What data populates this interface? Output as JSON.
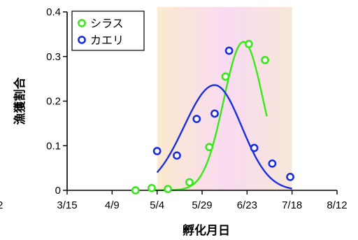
{
  "chart_data": {
    "type": "scatter",
    "title": "",
    "xlabel": "孵化月日",
    "ylabel": "漁獲割合",
    "x_tick_labels": [
      "3/15",
      "4/9",
      "5/4",
      "5/29",
      "6/23",
      "7/18",
      "8/12"
    ],
    "y_tick_labels": [
      "0",
      "0.1",
      "0.2",
      "0.3",
      "0.4"
    ],
    "left_clipped_label": "2",
    "ylim": [
      0,
      0.4
    ],
    "xlim": [
      "3/15",
      "8/12"
    ],
    "grid": false,
    "legend_position": "top-left",
    "shaded_region": {
      "x_range": [
        "5/4",
        "7/18"
      ],
      "colors": [
        "#fbeacf",
        "#f9dbf2",
        "#f7e7d8"
      ]
    },
    "series": [
      {
        "name": "シラス",
        "marker_color": "#39e81a",
        "line_color": "#39e81a",
        "points": [
          {
            "x": "4/22",
            "y": 0.0
          },
          {
            "x": "5/1",
            "y": 0.005
          },
          {
            "x": "5/10",
            "y": 0.003
          },
          {
            "x": "5/22",
            "y": 0.018
          },
          {
            "x": "6/2",
            "y": 0.097
          },
          {
            "x": "6/11",
            "y": 0.255
          },
          {
            "x": "6/24",
            "y": 0.328
          },
          {
            "x": "7/3",
            "y": 0.292
          }
        ],
        "fitted_curve": {
          "start": "5/2",
          "end": "7/4",
          "peak_x": "6/21",
          "peak_y": 0.333
        }
      },
      {
        "name": "カエリ",
        "marker_color": "#1a2ee0",
        "line_color": "#1a2ee0",
        "points": [
          {
            "x": "5/4",
            "y": 0.088
          },
          {
            "x": "5/15",
            "y": 0.078
          },
          {
            "x": "5/26",
            "y": 0.16
          },
          {
            "x": "6/5",
            "y": 0.172
          },
          {
            "x": "6/13",
            "y": 0.313
          },
          {
            "x": "6/27",
            "y": 0.095
          },
          {
            "x": "7/7",
            "y": 0.06
          },
          {
            "x": "7/17",
            "y": 0.03
          }
        ],
        "fitted_curve": {
          "start": "5/4",
          "end": "7/18",
          "peak_x": "6/5",
          "peak_y": 0.236
        }
      }
    ]
  }
}
